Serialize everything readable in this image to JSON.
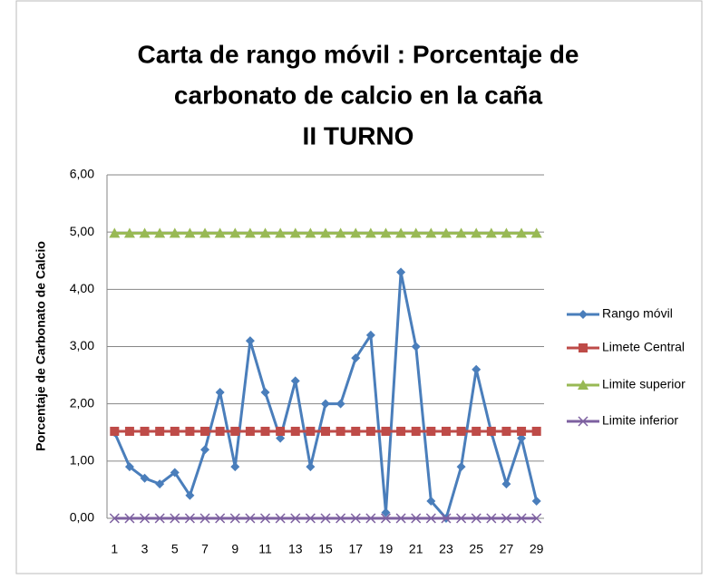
{
  "chart_data": {
    "type": "line",
    "title": [
      "Carta de rango móvil : Porcentaje de",
      "carbonato de calcio  en la  caña",
      "II TURNO"
    ],
    "y_label": "Porcentaje de Carbonato de Calcio",
    "categories": [
      1,
      null,
      3,
      null,
      5,
      null,
      7,
      null,
      9,
      null,
      11,
      null,
      13,
      null,
      15,
      null,
      17,
      null,
      19,
      null,
      21,
      null,
      23,
      null,
      25,
      null,
      27,
      null,
      29
    ],
    "series": [
      {
        "name": "Rango móvil",
        "color": "#4a7ebb",
        "marker": "diamond",
        "values": [
          1.5,
          0.9,
          0.7,
          0.6,
          0.8,
          0.4,
          1.2,
          2.2,
          0.9,
          3.1,
          2.2,
          1.4,
          2.4,
          0.9,
          2.0,
          2.0,
          2.8,
          3.2,
          0.1,
          4.3,
          3.0,
          0.3,
          0.0,
          0.9,
          2.6,
          1.5,
          0.6,
          1.4,
          0.3
        ]
      },
      {
        "name": "Limete Central",
        "color": "#be4b48",
        "marker": "square",
        "values": [
          1.52,
          1.52,
          1.52,
          1.52,
          1.52,
          1.52,
          1.52,
          1.52,
          1.52,
          1.52,
          1.52,
          1.52,
          1.52,
          1.52,
          1.52,
          1.52,
          1.52,
          1.52,
          1.52,
          1.52,
          1.52,
          1.52,
          1.52,
          1.52,
          1.52,
          1.52,
          1.52,
          1.52,
          1.52
        ]
      },
      {
        "name": "Limite superior",
        "color": "#98b954",
        "marker": "triangle",
        "values": [
          4.98,
          4.98,
          4.98,
          4.98,
          4.98,
          4.98,
          4.98,
          4.98,
          4.98,
          4.98,
          4.98,
          4.98,
          4.98,
          4.98,
          4.98,
          4.98,
          4.98,
          4.98,
          4.98,
          4.98,
          4.98,
          4.98,
          4.98,
          4.98,
          4.98,
          4.98,
          4.98,
          4.98,
          4.98
        ]
      },
      {
        "name": "Limite inferior",
        "color": "#7d60a0",
        "marker": "x",
        "values": [
          0,
          0,
          0,
          0,
          0,
          0,
          0,
          0,
          0,
          0,
          0,
          0,
          0,
          0,
          0,
          0,
          0,
          0,
          0,
          0,
          0,
          0,
          0,
          0,
          0,
          0,
          0,
          0,
          0
        ]
      }
    ],
    "ylim": [
      0,
      6
    ],
    "yticks": [
      {
        "value": 0,
        "label": "0,00"
      },
      {
        "value": 1,
        "label": "1,00"
      },
      {
        "value": 2,
        "label": "2,00"
      },
      {
        "value": 3,
        "label": "3,00"
      },
      {
        "value": 4,
        "label": "4,00"
      },
      {
        "value": 5,
        "label": "5,00"
      },
      {
        "value": 6,
        "label": "6,00"
      }
    ],
    "grid": true,
    "legend": "right"
  }
}
